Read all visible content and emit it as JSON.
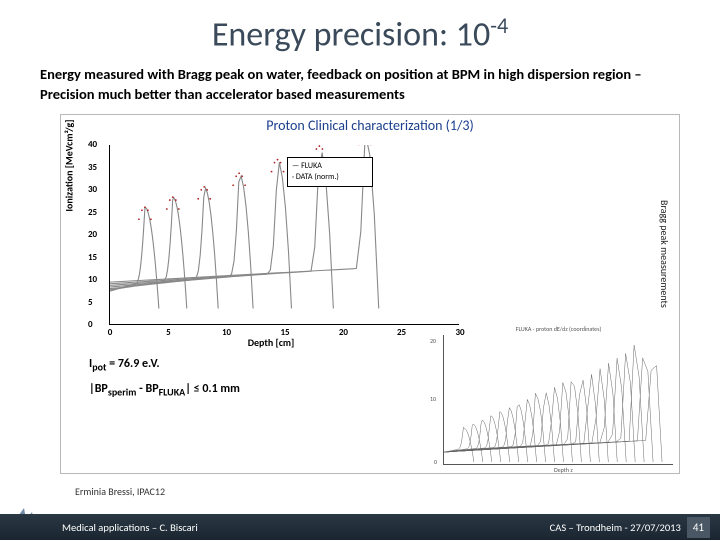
{
  "title_main": "Energy precision: 10",
  "title_exp": "-4",
  "subtitle": "Energy measured with Bragg peak on water, feedback on position at BPM in high dispersion region – Precision much better than accelerator based measurements",
  "figure": {
    "title": "Proton Clinical characterization (1/3)",
    "ylabel": "Ionization [MeVcm²/g]",
    "xlabel": "Depth [cm]",
    "yticks": [
      {
        "v": "0",
        "pos": 100
      },
      {
        "v": "5",
        "pos": 87.5
      },
      {
        "v": "10",
        "pos": 75
      },
      {
        "v": "15",
        "pos": 62.5
      },
      {
        "v": "20",
        "pos": 50
      },
      {
        "v": "25",
        "pos": 37.5
      },
      {
        "v": "30",
        "pos": 25
      },
      {
        "v": "35",
        "pos": 12.5
      },
      {
        "v": "40",
        "pos": 0
      }
    ],
    "xticks": [
      {
        "v": "0",
        "pos": 0
      },
      {
        "v": "5",
        "pos": 16.7
      },
      {
        "v": "10",
        "pos": 33.3
      },
      {
        "v": "15",
        "pos": 50
      },
      {
        "v": "20",
        "pos": 66.7
      },
      {
        "v": "25",
        "pos": 83.3
      },
      {
        "v": "30",
        "pos": 100
      }
    ],
    "legend": {
      "item1": "FLUKA",
      "item2": "DATA (norm.)"
    },
    "side_label": "Bragg peak measurements",
    "formula1_a": "I",
    "formula1_b": "pot",
    "formula1_c": " = 76.9 e.V.",
    "formula2_a": "|BP",
    "formula2_b": "sperim",
    "formula2_c": " - BP",
    "formula2_d": "FLUKA",
    "formula2_e": "| ≤ 0.1 mm",
    "inset_title": "FLUKA - proton dE/dz (coordinates)",
    "curves": [
      {
        "peak_x": 0.1,
        "peak_h": 0.56,
        "color": "#888"
      },
      {
        "peak_x": 0.18,
        "peak_h": 0.62,
        "color": "#888"
      },
      {
        "peak_x": 0.27,
        "peak_h": 0.68,
        "color": "#888"
      },
      {
        "peak_x": 0.37,
        "peak_h": 0.76,
        "color": "#888"
      },
      {
        "peak_x": 0.48,
        "peak_h": 0.84,
        "color": "#888"
      },
      {
        "peak_x": 0.6,
        "peak_h": 0.92,
        "color": "#888"
      },
      {
        "peak_x": 0.73,
        "peak_h": 1.0,
        "color": "#888"
      }
    ],
    "curve_stroke_width": 1.1,
    "marker_color": "#b02020"
  },
  "credit": "Erminia Bressi, IPAC12",
  "footer": {
    "left": "Medical applications – C. Biscari",
    "right": "CAS – Trondheim - 27/07/2013",
    "page": "41"
  },
  "logo_text": "ALBA",
  "colors": {
    "title": "#3a4a5a",
    "fig_title": "#1a3e8c",
    "footer_bg1": "#2a3844",
    "footer_bg2": "#1a2530"
  }
}
